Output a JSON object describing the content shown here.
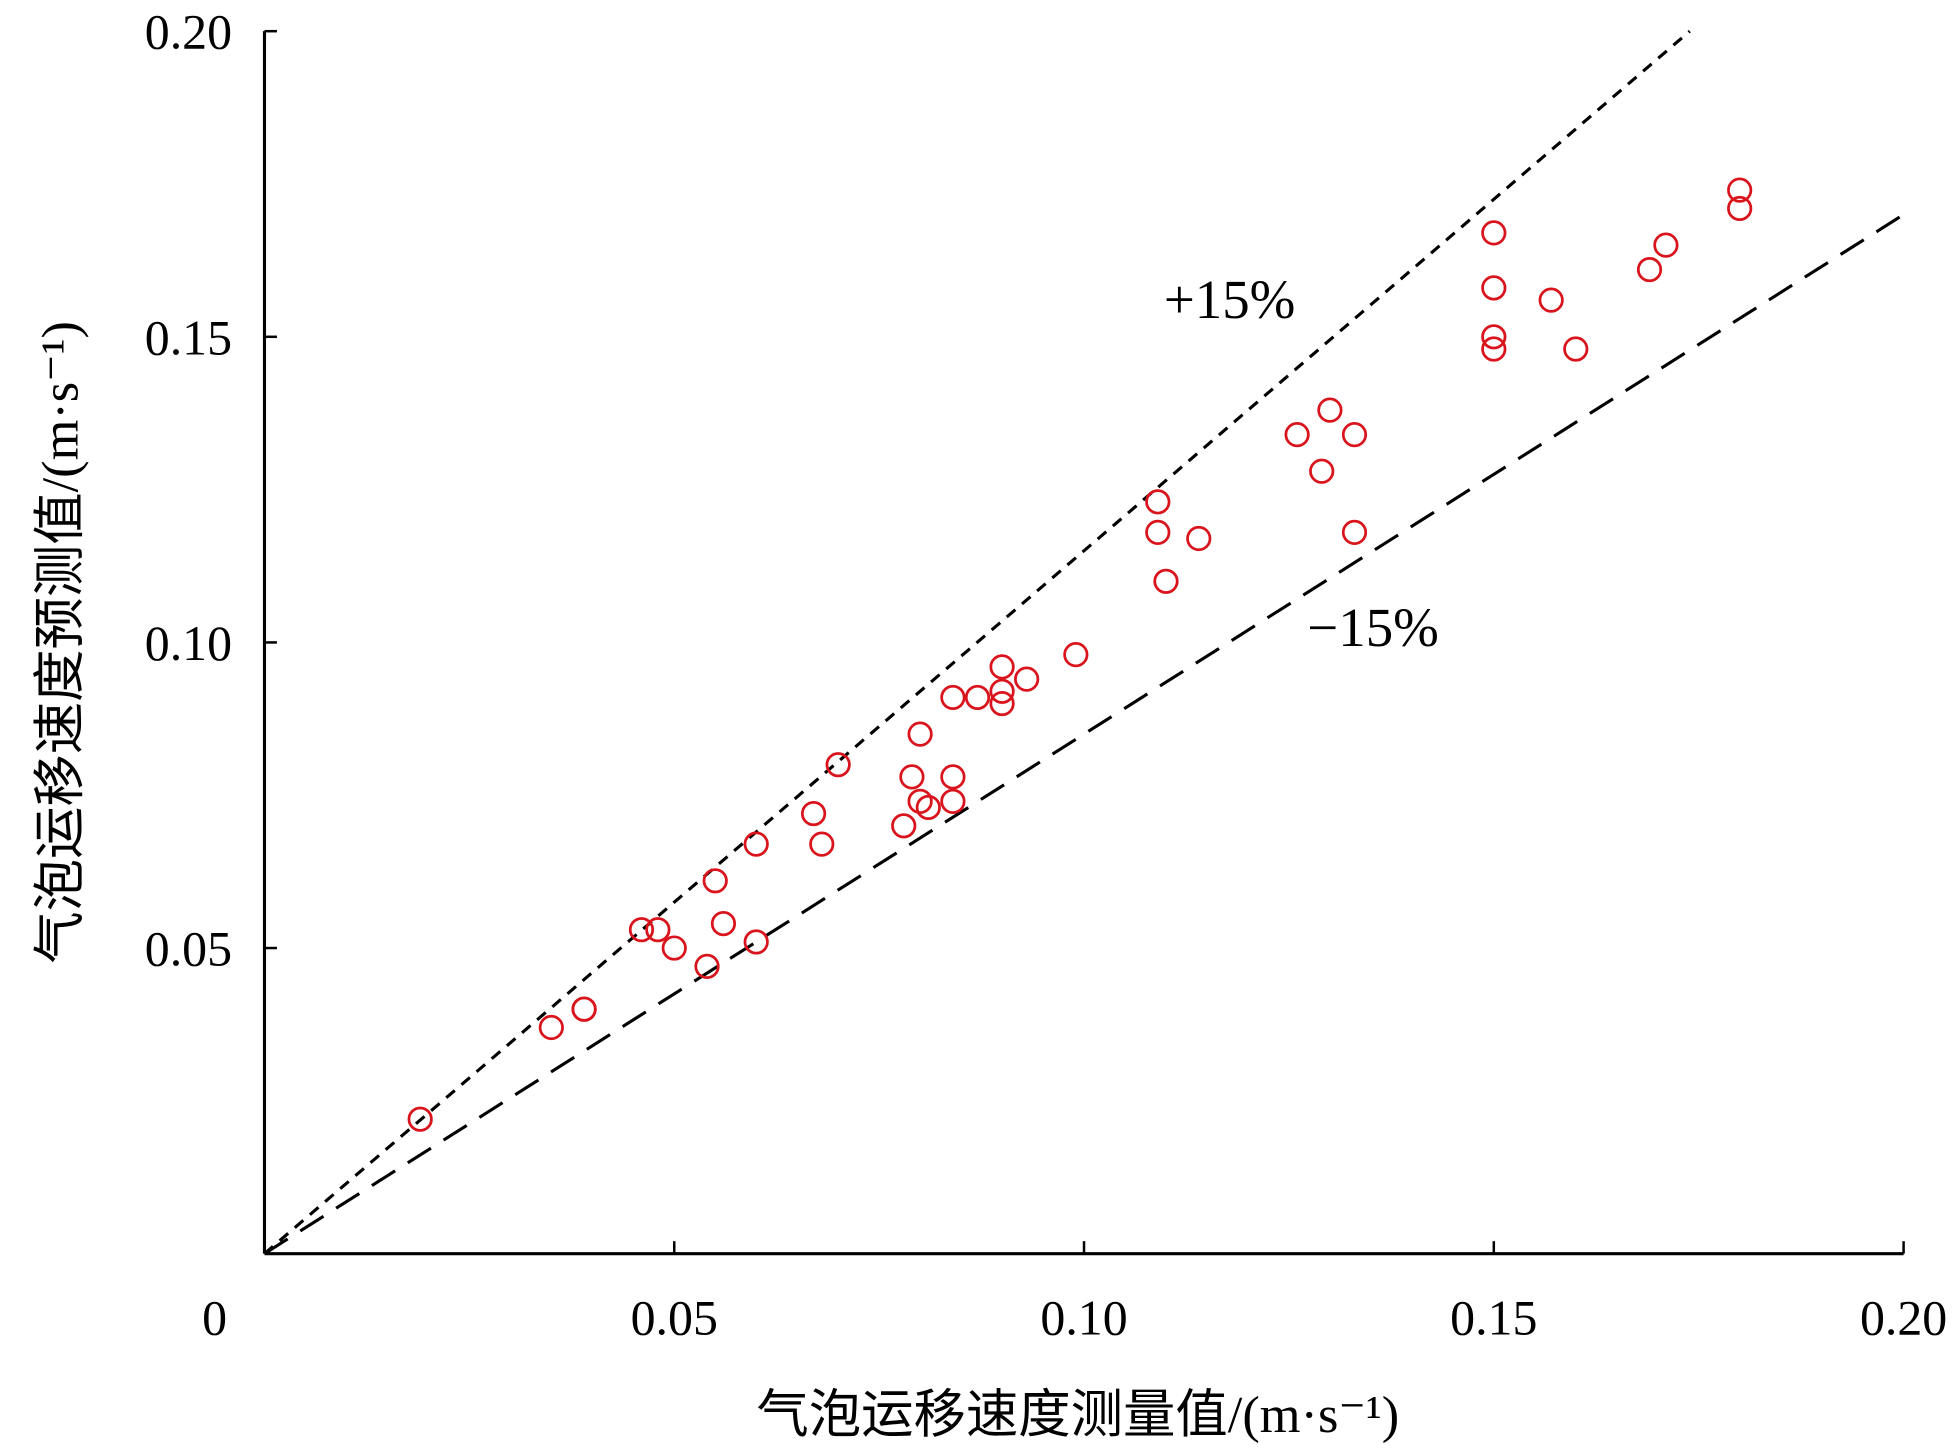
{
  "chart_data": {
    "type": "scatter",
    "title": "",
    "xlabel": "气泡运移速度测量值/(m·s⁻¹)",
    "ylabel": "气泡运移速度预测值/(m·s⁻¹)",
    "xlim": [
      0,
      0.2
    ],
    "ylim": [
      0,
      0.2
    ],
    "origin_label": "0",
    "xticks": [
      "0.05",
      "0.10",
      "0.15",
      "0.20"
    ],
    "xtick_values": [
      0.05,
      0.1,
      0.15,
      0.2
    ],
    "yticks": [
      "0.05",
      "0.10",
      "0.15",
      "0.20"
    ],
    "ytick_values": [
      0.05,
      0.1,
      0.15,
      0.2
    ],
    "grid": false,
    "marker": "open-circle",
    "marker_color": "#d9141c",
    "reference_lines": [
      {
        "label": "+15%",
        "slope": 1.15,
        "style": "short-dash"
      },
      {
        "label": "−15%",
        "slope": 0.85,
        "style": "long-dash"
      }
    ],
    "points": [
      [
        0.019,
        0.022
      ],
      [
        0.035,
        0.037
      ],
      [
        0.039,
        0.04
      ],
      [
        0.039,
        0.04
      ],
      [
        0.046,
        0.053
      ],
      [
        0.048,
        0.053
      ],
      [
        0.05,
        0.05
      ],
      [
        0.054,
        0.047
      ],
      [
        0.055,
        0.061
      ],
      [
        0.056,
        0.054
      ],
      [
        0.06,
        0.067
      ],
      [
        0.06,
        0.051
      ],
      [
        0.067,
        0.072
      ],
      [
        0.068,
        0.067
      ],
      [
        0.07,
        0.08
      ],
      [
        0.078,
        0.07
      ],
      [
        0.079,
        0.078
      ],
      [
        0.08,
        0.085
      ],
      [
        0.08,
        0.074
      ],
      [
        0.081,
        0.073
      ],
      [
        0.084,
        0.091
      ],
      [
        0.084,
        0.078
      ],
      [
        0.084,
        0.074
      ],
      [
        0.087,
        0.091
      ],
      [
        0.09,
        0.096
      ],
      [
        0.09,
        0.092
      ],
      [
        0.09,
        0.09
      ],
      [
        0.093,
        0.094
      ],
      [
        0.099,
        0.098
      ],
      [
        0.109,
        0.123
      ],
      [
        0.109,
        0.118
      ],
      [
        0.11,
        0.11
      ],
      [
        0.114,
        0.117
      ],
      [
        0.126,
        0.134
      ],
      [
        0.129,
        0.128
      ],
      [
        0.13,
        0.138
      ],
      [
        0.133,
        0.134
      ],
      [
        0.133,
        0.118
      ],
      [
        0.15,
        0.167
      ],
      [
        0.15,
        0.158
      ],
      [
        0.15,
        0.15
      ],
      [
        0.15,
        0.148
      ],
      [
        0.157,
        0.156
      ],
      [
        0.16,
        0.148
      ],
      [
        0.169,
        0.161
      ],
      [
        0.171,
        0.165
      ],
      [
        0.18,
        0.174
      ],
      [
        0.18,
        0.171
      ]
    ]
  }
}
